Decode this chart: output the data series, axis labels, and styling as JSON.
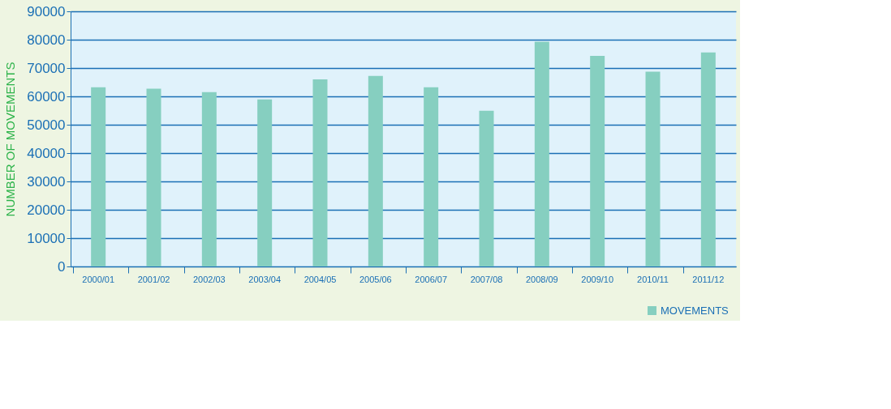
{
  "chart_data": {
    "type": "bar",
    "ylabel": "NUMBER OF MOVEMENTS",
    "categories": [
      "2000/01",
      "2001/02",
      "2002/03",
      "2003/04",
      "2004/05",
      "2005/06",
      "2006/07",
      "2007/08",
      "2008/09",
      "2009/10",
      "2010/11",
      "2011/12"
    ],
    "series": [
      {
        "name": "MOVEMENTS",
        "color": "#86cfc0",
        "values": [
          63200,
          62700,
          61500,
          58900,
          66000,
          67200,
          63200,
          54900,
          79300,
          74300,
          68700,
          75500
        ]
      }
    ],
    "ylim": [
      0,
      90000
    ],
    "yticks": [
      0,
      10000,
      20000,
      30000,
      40000,
      50000,
      60000,
      70000,
      80000,
      90000
    ],
    "grid": "y",
    "legend": "bottom right"
  }
}
